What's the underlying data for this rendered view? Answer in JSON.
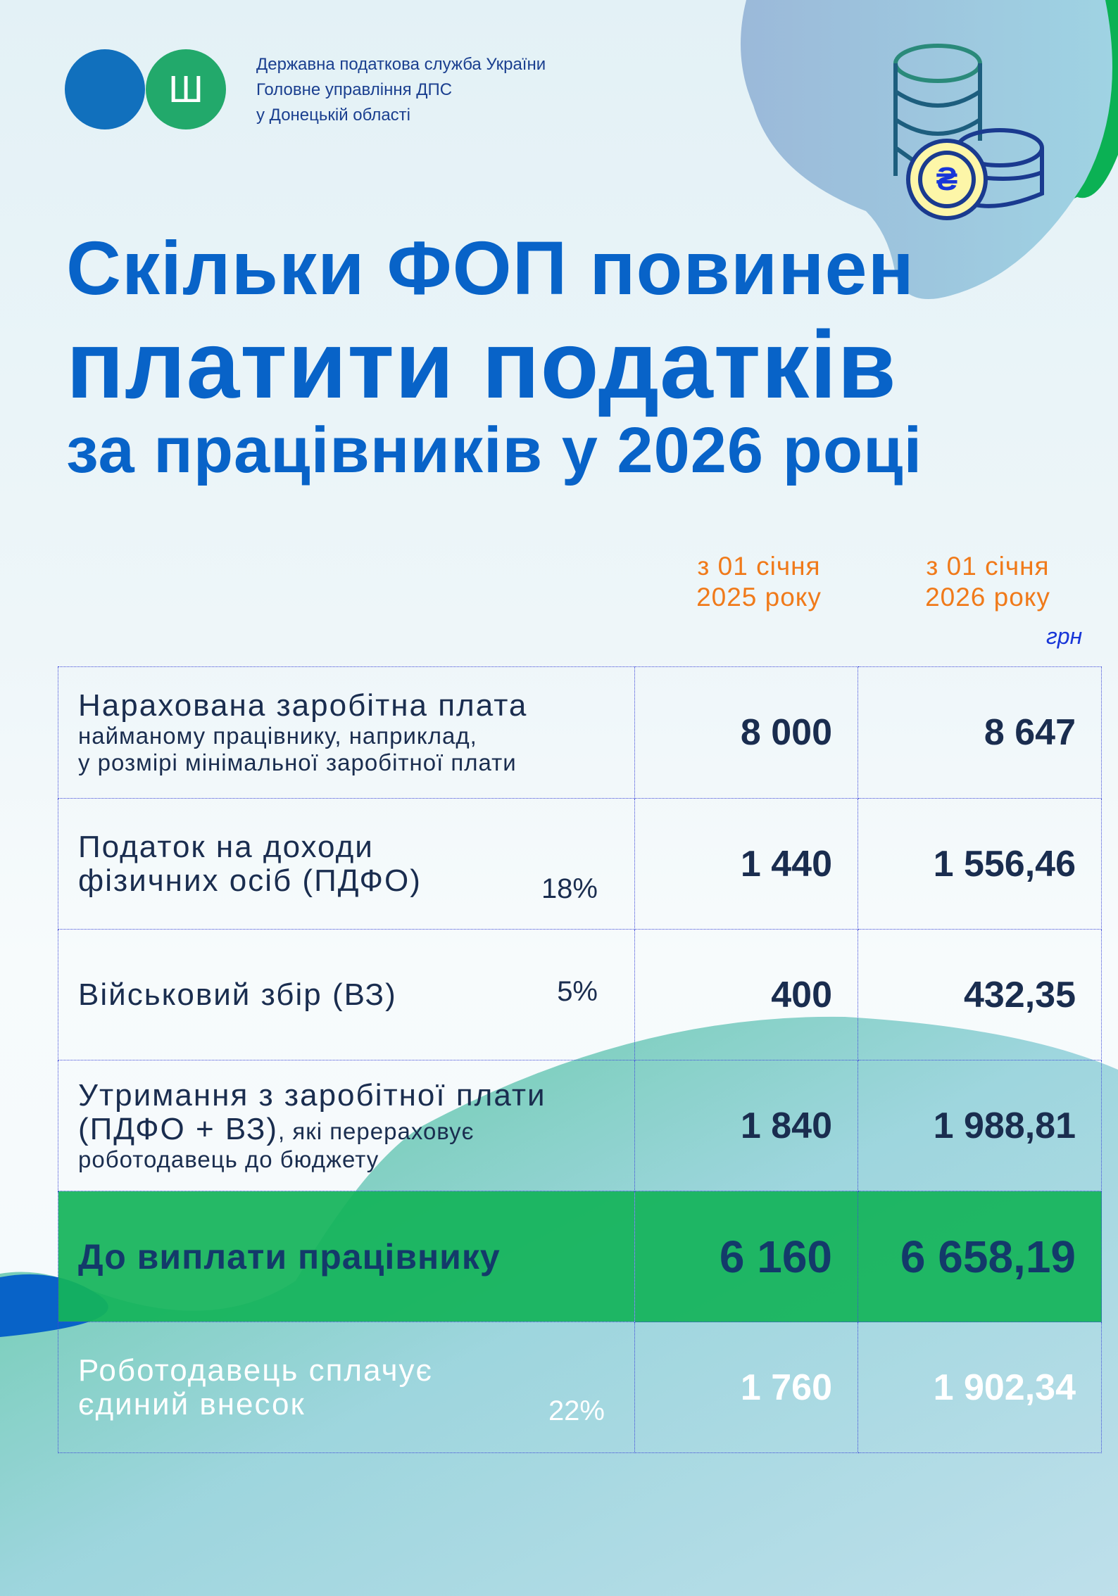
{
  "header": {
    "org_lines": [
      "Державна податкова служба України",
      "Головне управління ДПС",
      "у Донецькій області"
    ],
    "logo_emblem": "trident-icon",
    "currency_symbol": "₴"
  },
  "title": {
    "line1": "Скільки ФОП повинен",
    "line2": "платити податків",
    "line3": "за працівників у 2026 році"
  },
  "columns": [
    {
      "line1": "з 01 січня",
      "line2": "2025 року"
    },
    {
      "line1": "з 01 січня",
      "line2": "2026 року"
    }
  ],
  "unit": "грн",
  "rows": [
    {
      "label_main": "Нарахована заробітна плата",
      "label_sub1": "найманому працівнику, наприклад,",
      "label_sub2": "у розмірі мінімальної заробітної плати",
      "v2025": "8 000",
      "v2026": "8 647"
    },
    {
      "label_main": "Податок на доходи",
      "label_main2": "фізичних осіб (ПДФО)",
      "rate": "18%",
      "v2025": "1 440",
      "v2026": "1 556,46"
    },
    {
      "label_main": "Військовий збір (ВЗ)",
      "rate": "5%",
      "v2025": "400",
      "v2026": "432,35"
    },
    {
      "label_main": "Утримання з заробітної плати",
      "label_main2": "(ПДФО + ВЗ)",
      "label_sub1": ", які перераховує",
      "label_sub2": "роботодавець до бюджету",
      "v2025": "1 840",
      "v2026": "1 988,81"
    },
    {
      "label_main": "До виплати працівнику",
      "v2025": "6 160",
      "v2026": "6 658,19"
    },
    {
      "label_main": "Роботодавець сплачує",
      "label_main2": "єдиний внесок",
      "rate": "22%",
      "v2025": "1 760",
      "v2026": "1 902,34"
    }
  ],
  "colors": {
    "title": "#0863c8",
    "accent_orange": "#f07a1a",
    "green": "#14b45a",
    "dark_text": "#1a2d4f"
  }
}
